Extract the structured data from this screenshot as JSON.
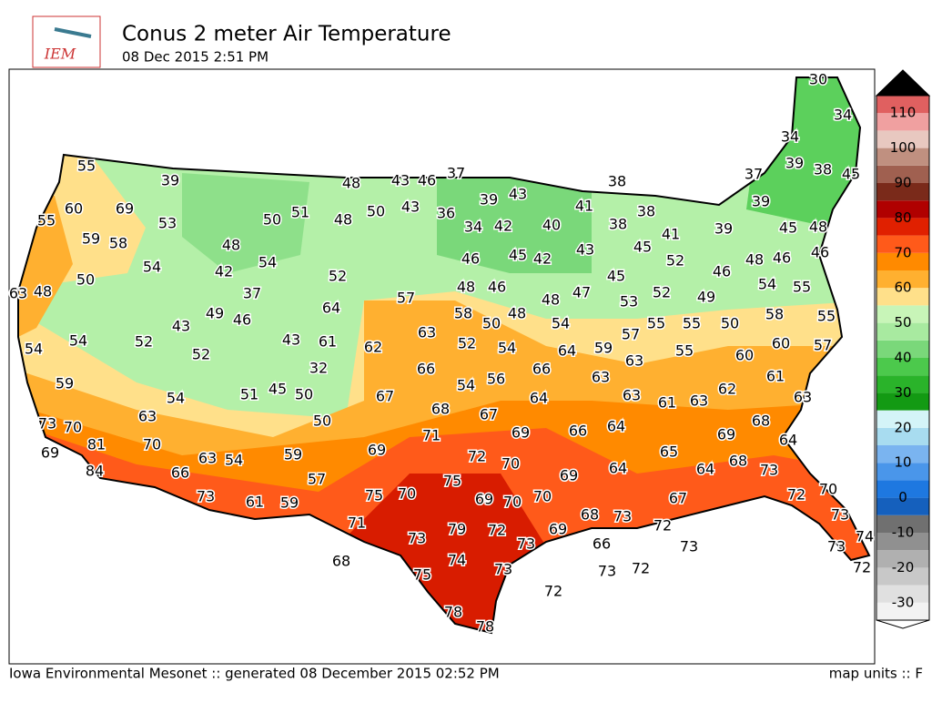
{
  "header": {
    "logo": "IEM",
    "title": "Conus 2 meter Air Temperature",
    "subtitle": "08 Dec 2015 2:51 PM"
  },
  "stations": {
    "values": [
      30,
      34,
      55,
      39,
      48,
      43,
      46,
      37,
      38,
      34,
      39,
      38,
      45,
      37,
      39,
      43,
      41,
      38,
      55,
      60,
      69,
      53,
      50,
      51,
      48,
      50,
      43,
      36,
      34,
      42,
      40,
      38,
      39,
      45,
      48,
      39,
      59,
      58,
      48,
      46,
      45,
      41,
      43,
      54,
      42,
      54,
      46,
      45,
      42,
      52,
      46,
      48,
      46,
      52,
      45,
      63,
      48,
      50,
      37,
      48,
      46,
      57,
      48,
      47,
      53,
      52,
      49,
      54,
      55,
      49,
      46,
      64,
      58,
      50,
      48,
      58,
      55,
      43,
      54,
      55,
      55,
      50,
      57,
      63,
      54,
      54,
      52,
      52,
      43,
      61,
      62,
      52,
      54,
      64,
      59,
      55,
      60,
      60,
      57,
      32,
      66,
      66,
      63,
      61,
      59,
      54,
      56,
      63,
      54,
      51,
      45,
      50,
      67,
      64,
      63,
      61,
      63,
      62,
      63,
      63,
      68,
      67,
      50,
      73,
      70,
      71,
      69,
      66,
      64,
      69,
      68,
      64,
      69,
      81,
      70,
      59,
      69,
      72,
      70,
      65,
      63,
      54,
      68,
      73,
      84,
      66,
      57,
      75,
      69,
      64,
      64,
      73,
      61,
      59,
      75,
      70,
      69,
      70,
      70,
      67,
      72,
      70,
      68,
      73,
      72,
      73,
      71,
      73,
      79,
      72,
      73,
      69,
      66,
      73,
      74,
      73,
      68,
      74,
      73,
      73,
      72,
      72,
      75,
      72,
      78,
      78
    ]
  },
  "colorbar": {
    "range": [
      -35,
      115
    ],
    "ticks": [
      110,
      100,
      90,
      80,
      70,
      60,
      50,
      40,
      30,
      20,
      10,
      0,
      -10,
      -20,
      -30
    ],
    "colors": [
      "#f2f2f2",
      "#e0e0e0",
      "#c8c8c8",
      "#b0b0b0",
      "#909090",
      "#707070",
      "#1560bd",
      "#1e78e0",
      "#4a96ea",
      "#7ab4f0",
      "#a8dcf0",
      "#d4f4f8",
      "#139a13",
      "#2ab32a",
      "#4cc94c",
      "#7ad87a",
      "#a8eaa0",
      "#c8f5b8",
      "#ffe08a",
      "#ffb030",
      "#ff8a00",
      "#ff5a1a",
      "#e02000",
      "#b00000",
      "#7a2a1a",
      "#a06050",
      "#c09080",
      "#e8c8c0",
      "#f0a0a0",
      "#e06060"
    ]
  },
  "footer": {
    "left": "Iowa Environmental Mesonet :: generated 08 December 2015 02:52 PM",
    "right": "map units :: F"
  }
}
